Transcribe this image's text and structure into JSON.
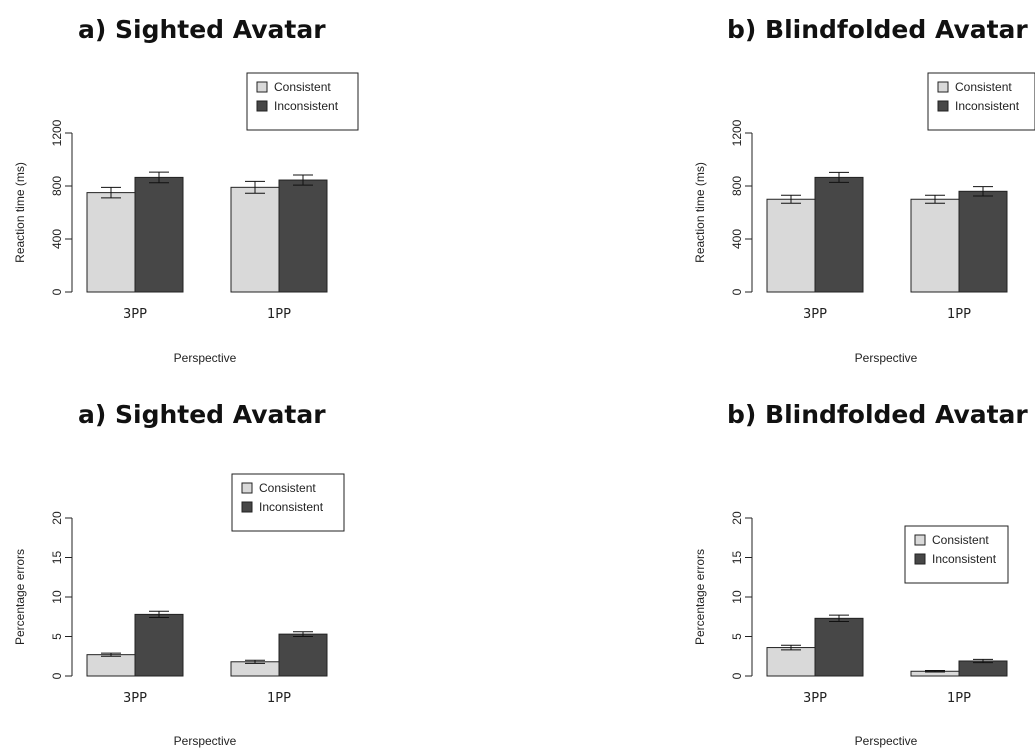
{
  "figure": {
    "background": "#ffffff",
    "colors": {
      "consistent": "#d9d9d9",
      "inconsistent": "#474747",
      "stroke": "#222222"
    }
  },
  "chart_data": [
    {
      "type": "bar",
      "title": "a) Sighted Avatar",
      "xlabel": "Perspective",
      "ylabel": "Reaction time (ms)",
      "categories": [
        "3PP",
        "1PP"
      ],
      "series": [
        {
          "name": "Consistent",
          "values": [
            750,
            790
          ],
          "errors": [
            40,
            45
          ]
        },
        {
          "name": "Inconsistent",
          "values": [
            865,
            845
          ],
          "errors": [
            40,
            38
          ]
        }
      ],
      "ylim": [
        0,
        1200
      ],
      "yticks": [
        0,
        400,
        800,
        1200
      ],
      "legend": "top-right",
      "grid": false
    },
    {
      "type": "bar",
      "title": "b) Blindfolded Avatar",
      "xlabel": "Perspective",
      "ylabel": "Reaction time (ms)",
      "categories": [
        "3PP",
        "1PP"
      ],
      "series": [
        {
          "name": "Consistent",
          "values": [
            700,
            700
          ],
          "errors": [
            30,
            30
          ]
        },
        {
          "name": "Inconsistent",
          "values": [
            865,
            760
          ],
          "errors": [
            38,
            35
          ]
        }
      ],
      "ylim": [
        0,
        1200
      ],
      "yticks": [
        0,
        400,
        800,
        1200
      ],
      "legend": "top-right",
      "grid": false
    },
    {
      "type": "bar",
      "title": "a) Sighted Avatar",
      "xlabel": "Perspective",
      "ylabel": "Percentage errors",
      "categories": [
        "3PP",
        "1PP"
      ],
      "series": [
        {
          "name": "Consistent",
          "values": [
            2.7,
            1.8
          ],
          "errors": [
            0.2,
            0.2
          ]
        },
        {
          "name": "Inconsistent",
          "values": [
            7.8,
            5.3
          ],
          "errors": [
            0.4,
            0.3
          ]
        }
      ],
      "ylim": [
        0,
        20
      ],
      "yticks": [
        0,
        5,
        10,
        15,
        20
      ],
      "legend": "top-right",
      "grid": false
    },
    {
      "type": "bar",
      "title": "b) Blindfolded Avatar",
      "xlabel": "Perspective",
      "ylabel": "Percentage errors",
      "categories": [
        "3PP",
        "1PP"
      ],
      "series": [
        {
          "name": "Consistent",
          "values": [
            3.6,
            0.6
          ],
          "errors": [
            0.3,
            0.1
          ]
        },
        {
          "name": "Inconsistent",
          "values": [
            7.3,
            1.9
          ],
          "errors": [
            0.4,
            0.2
          ]
        }
      ],
      "ylim": [
        0,
        20
      ],
      "yticks": [
        0,
        5,
        10,
        15,
        20
      ],
      "legend": "right",
      "grid": false
    }
  ]
}
